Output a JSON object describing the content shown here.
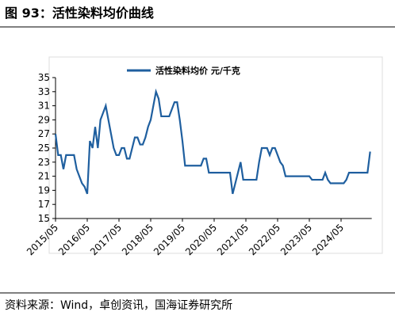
{
  "chart_data": {
    "type": "line",
    "title": "图 93：活性染料均价曲线",
    "source": "资料来源：Wind，卓创资讯，国海证券研究所",
    "x": [
      "2015/05",
      "2015/06",
      "2015/07",
      "2015/08",
      "2015/09",
      "2015/10",
      "2015/11",
      "2015/12",
      "2016/01",
      "2016/02",
      "2016/03",
      "2016/04",
      "2016/05",
      "2016/06",
      "2016/07",
      "2016/08",
      "2016/09",
      "2016/10",
      "2016/11",
      "2016/12",
      "2017/01",
      "2017/02",
      "2017/03",
      "2017/04",
      "2017/05",
      "2017/06",
      "2017/07",
      "2017/08",
      "2017/09",
      "2017/10",
      "2017/11",
      "2017/12",
      "2018/01",
      "2018/02",
      "2018/03",
      "2018/04",
      "2018/05",
      "2018/06",
      "2018/07",
      "2018/08",
      "2018/09",
      "2018/10",
      "2018/11",
      "2018/12",
      "2019/01",
      "2019/02",
      "2019/03",
      "2019/04",
      "2019/05",
      "2019/06",
      "2019/07",
      "2019/08",
      "2019/09",
      "2019/10",
      "2019/11",
      "2019/12",
      "2020/01",
      "2020/02",
      "2020/03",
      "2020/04",
      "2020/05",
      "2020/06",
      "2020/07",
      "2020/08",
      "2020/09",
      "2020/10",
      "2020/11",
      "2020/12",
      "2021/01",
      "2021/02",
      "2021/03",
      "2021/04",
      "2021/05",
      "2021/06",
      "2021/07",
      "2021/08",
      "2021/09",
      "2021/10",
      "2021/11",
      "2021/12",
      "2022/01",
      "2022/02",
      "2022/03",
      "2022/04",
      "2022/05",
      "2022/06",
      "2022/07",
      "2022/08",
      "2022/09",
      "2022/10",
      "2022/11",
      "2022/12",
      "2023/01",
      "2023/02",
      "2023/03",
      "2023/04",
      "2023/05",
      "2023/06",
      "2023/07",
      "2023/08",
      "2023/09",
      "2023/10",
      "2023/11",
      "2023/12",
      "2024/01",
      "2024/02",
      "2024/03",
      "2024/04",
      "2024/05",
      "2024/06",
      "2024/07",
      "2024/08",
      "2024/09",
      "2024/10",
      "2024/11",
      "2024/12",
      "2025/01",
      "2025/02",
      "2025/03",
      "2025/04"
    ],
    "series": [
      {
        "name": "活性染料均价 元/千克",
        "color": "#1f5f9f",
        "values": [
          27,
          24,
          24,
          22,
          24,
          24,
          24,
          24,
          22,
          21,
          20,
          19.5,
          18.5,
          26,
          25,
          28,
          25,
          29,
          30,
          31,
          29,
          27,
          25,
          24,
          24,
          25,
          25,
          23.5,
          23.5,
          25,
          26.5,
          26.5,
          25.5,
          25.5,
          26.5,
          28,
          29,
          31,
          33,
          32,
          29.5,
          29.5,
          29.5,
          29.5,
          30.5,
          31.5,
          31.5,
          29,
          26,
          22.5,
          22.5,
          22.5,
          22.5,
          22.5,
          22.5,
          22.5,
          23.5,
          23.5,
          21.5,
          21.5,
          21.5,
          21.5,
          21.5,
          21.5,
          21.5,
          21.5,
          21.5,
          18.5,
          20,
          21.5,
          23,
          20.5,
          20.5,
          20.5,
          20.5,
          20.5,
          20.5,
          23,
          25,
          25,
          25,
          24,
          25,
          25,
          24,
          23,
          22.5,
          21,
          21,
          21,
          21,
          21,
          21,
          21,
          21,
          21,
          21,
          20.5,
          20.5,
          20.5,
          20.5,
          20.5,
          21.5,
          20.5,
          20,
          20,
          20,
          20,
          20,
          20,
          20.5,
          21.5,
          21.5,
          21.5,
          21.5,
          21.5,
          21.5,
          21.5,
          21.5,
          24.5
        ]
      }
    ],
    "xticks": [
      "2015/05",
      "2016/05",
      "2017/05",
      "2018/05",
      "2019/05",
      "2020/05",
      "2021/05",
      "2022/05",
      "2023/05",
      "2024/05"
    ],
    "ylim": [
      15,
      35
    ],
    "yticks": [
      15,
      17,
      19,
      21,
      23,
      25,
      27,
      29,
      31,
      33,
      35
    ]
  }
}
